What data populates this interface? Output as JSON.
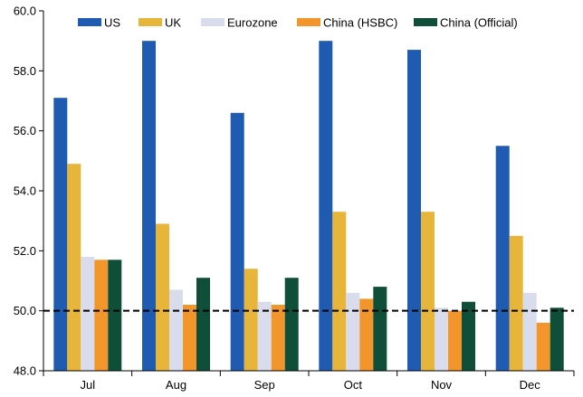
{
  "chart_data": {
    "type": "bar",
    "title": "",
    "xlabel": "",
    "ylabel": "",
    "categories": [
      "Jul",
      "Aug",
      "Sep",
      "Oct",
      "Nov",
      "Dec"
    ],
    "ylim": [
      48.0,
      60.0
    ],
    "yticks": [
      "48.0",
      "50.0",
      "52.0",
      "54.0",
      "56.0",
      "58.0",
      "60.0"
    ],
    "reference_line": 50.0,
    "grid": false,
    "legend_position": "top",
    "series": [
      {
        "name": "US",
        "color": "#1F5BB0",
        "values": [
          57.1,
          59.0,
          56.6,
          59.0,
          58.7,
          55.5
        ]
      },
      {
        "name": "UK",
        "color": "#E7B53A",
        "values": [
          54.9,
          52.9,
          51.4,
          53.3,
          53.3,
          52.5
        ]
      },
      {
        "name": "Eurozone",
        "color": "#D9DCEC",
        "values": [
          51.8,
          50.7,
          50.3,
          50.6,
          50.1,
          50.6
        ]
      },
      {
        "name": "China (HSBC)",
        "color": "#F2952A",
        "values": [
          51.7,
          50.2,
          50.2,
          50.4,
          50.0,
          49.6
        ]
      },
      {
        "name": "China (Official)",
        "color": "#0F4F3A",
        "values": [
          51.7,
          51.1,
          51.1,
          50.8,
          50.3,
          50.1
        ]
      }
    ]
  }
}
